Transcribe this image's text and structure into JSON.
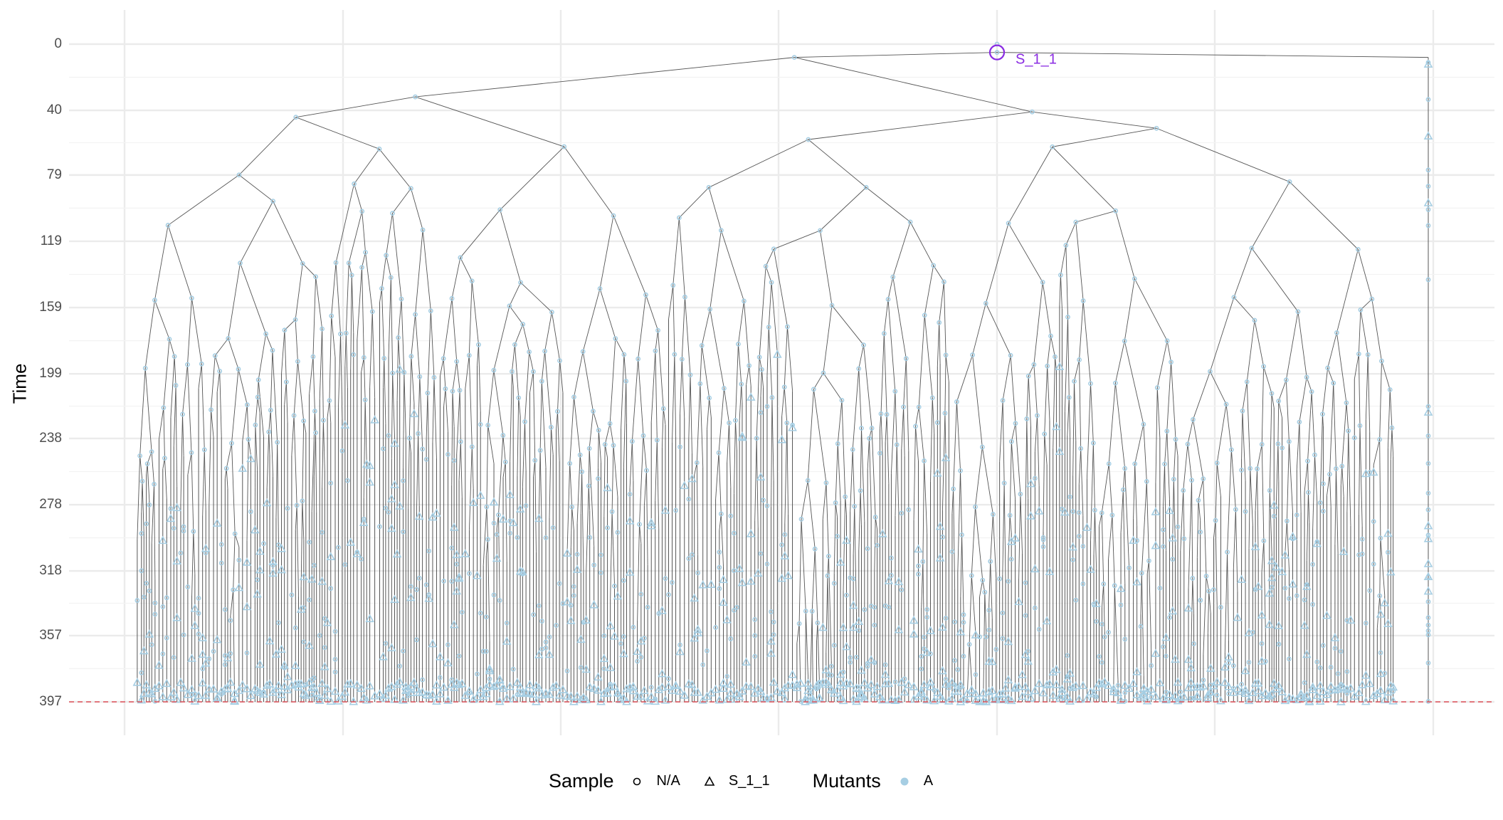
{
  "chart_data": {
    "type": "tree",
    "title": "",
    "xlabel": "",
    "ylabel": "Time",
    "ylim": [
      397,
      0
    ],
    "y_reversed": true,
    "y_ticks": [
      "0",
      "40",
      "79",
      "119",
      "159",
      "199",
      "238",
      "278",
      "318",
      "357",
      "397"
    ],
    "y_tick_values": [
      0,
      40,
      79,
      119,
      159,
      199,
      238,
      278,
      318,
      357,
      397
    ],
    "grid": true,
    "reference_line": {
      "time": 397,
      "style": "dashed",
      "color": "#e0525a"
    },
    "root": {
      "label": "S_1_1",
      "time": 5,
      "color": "#8a2be2"
    },
    "point_color": "#a6cee3",
    "edge_color": "#555555",
    "legend": {
      "placement": "bottom",
      "groups": [
        {
          "title": "Sample",
          "entries": [
            {
              "label": "N/A",
              "shape": "circle-open"
            },
            {
              "label": "S_1_1",
              "shape": "triangle-open"
            }
          ]
        },
        {
          "title": "Mutants",
          "entries": [
            {
              "label": "A",
              "shape": "circle-filled",
              "color": "#a6cee3"
            }
          ]
        }
      ]
    }
  }
}
